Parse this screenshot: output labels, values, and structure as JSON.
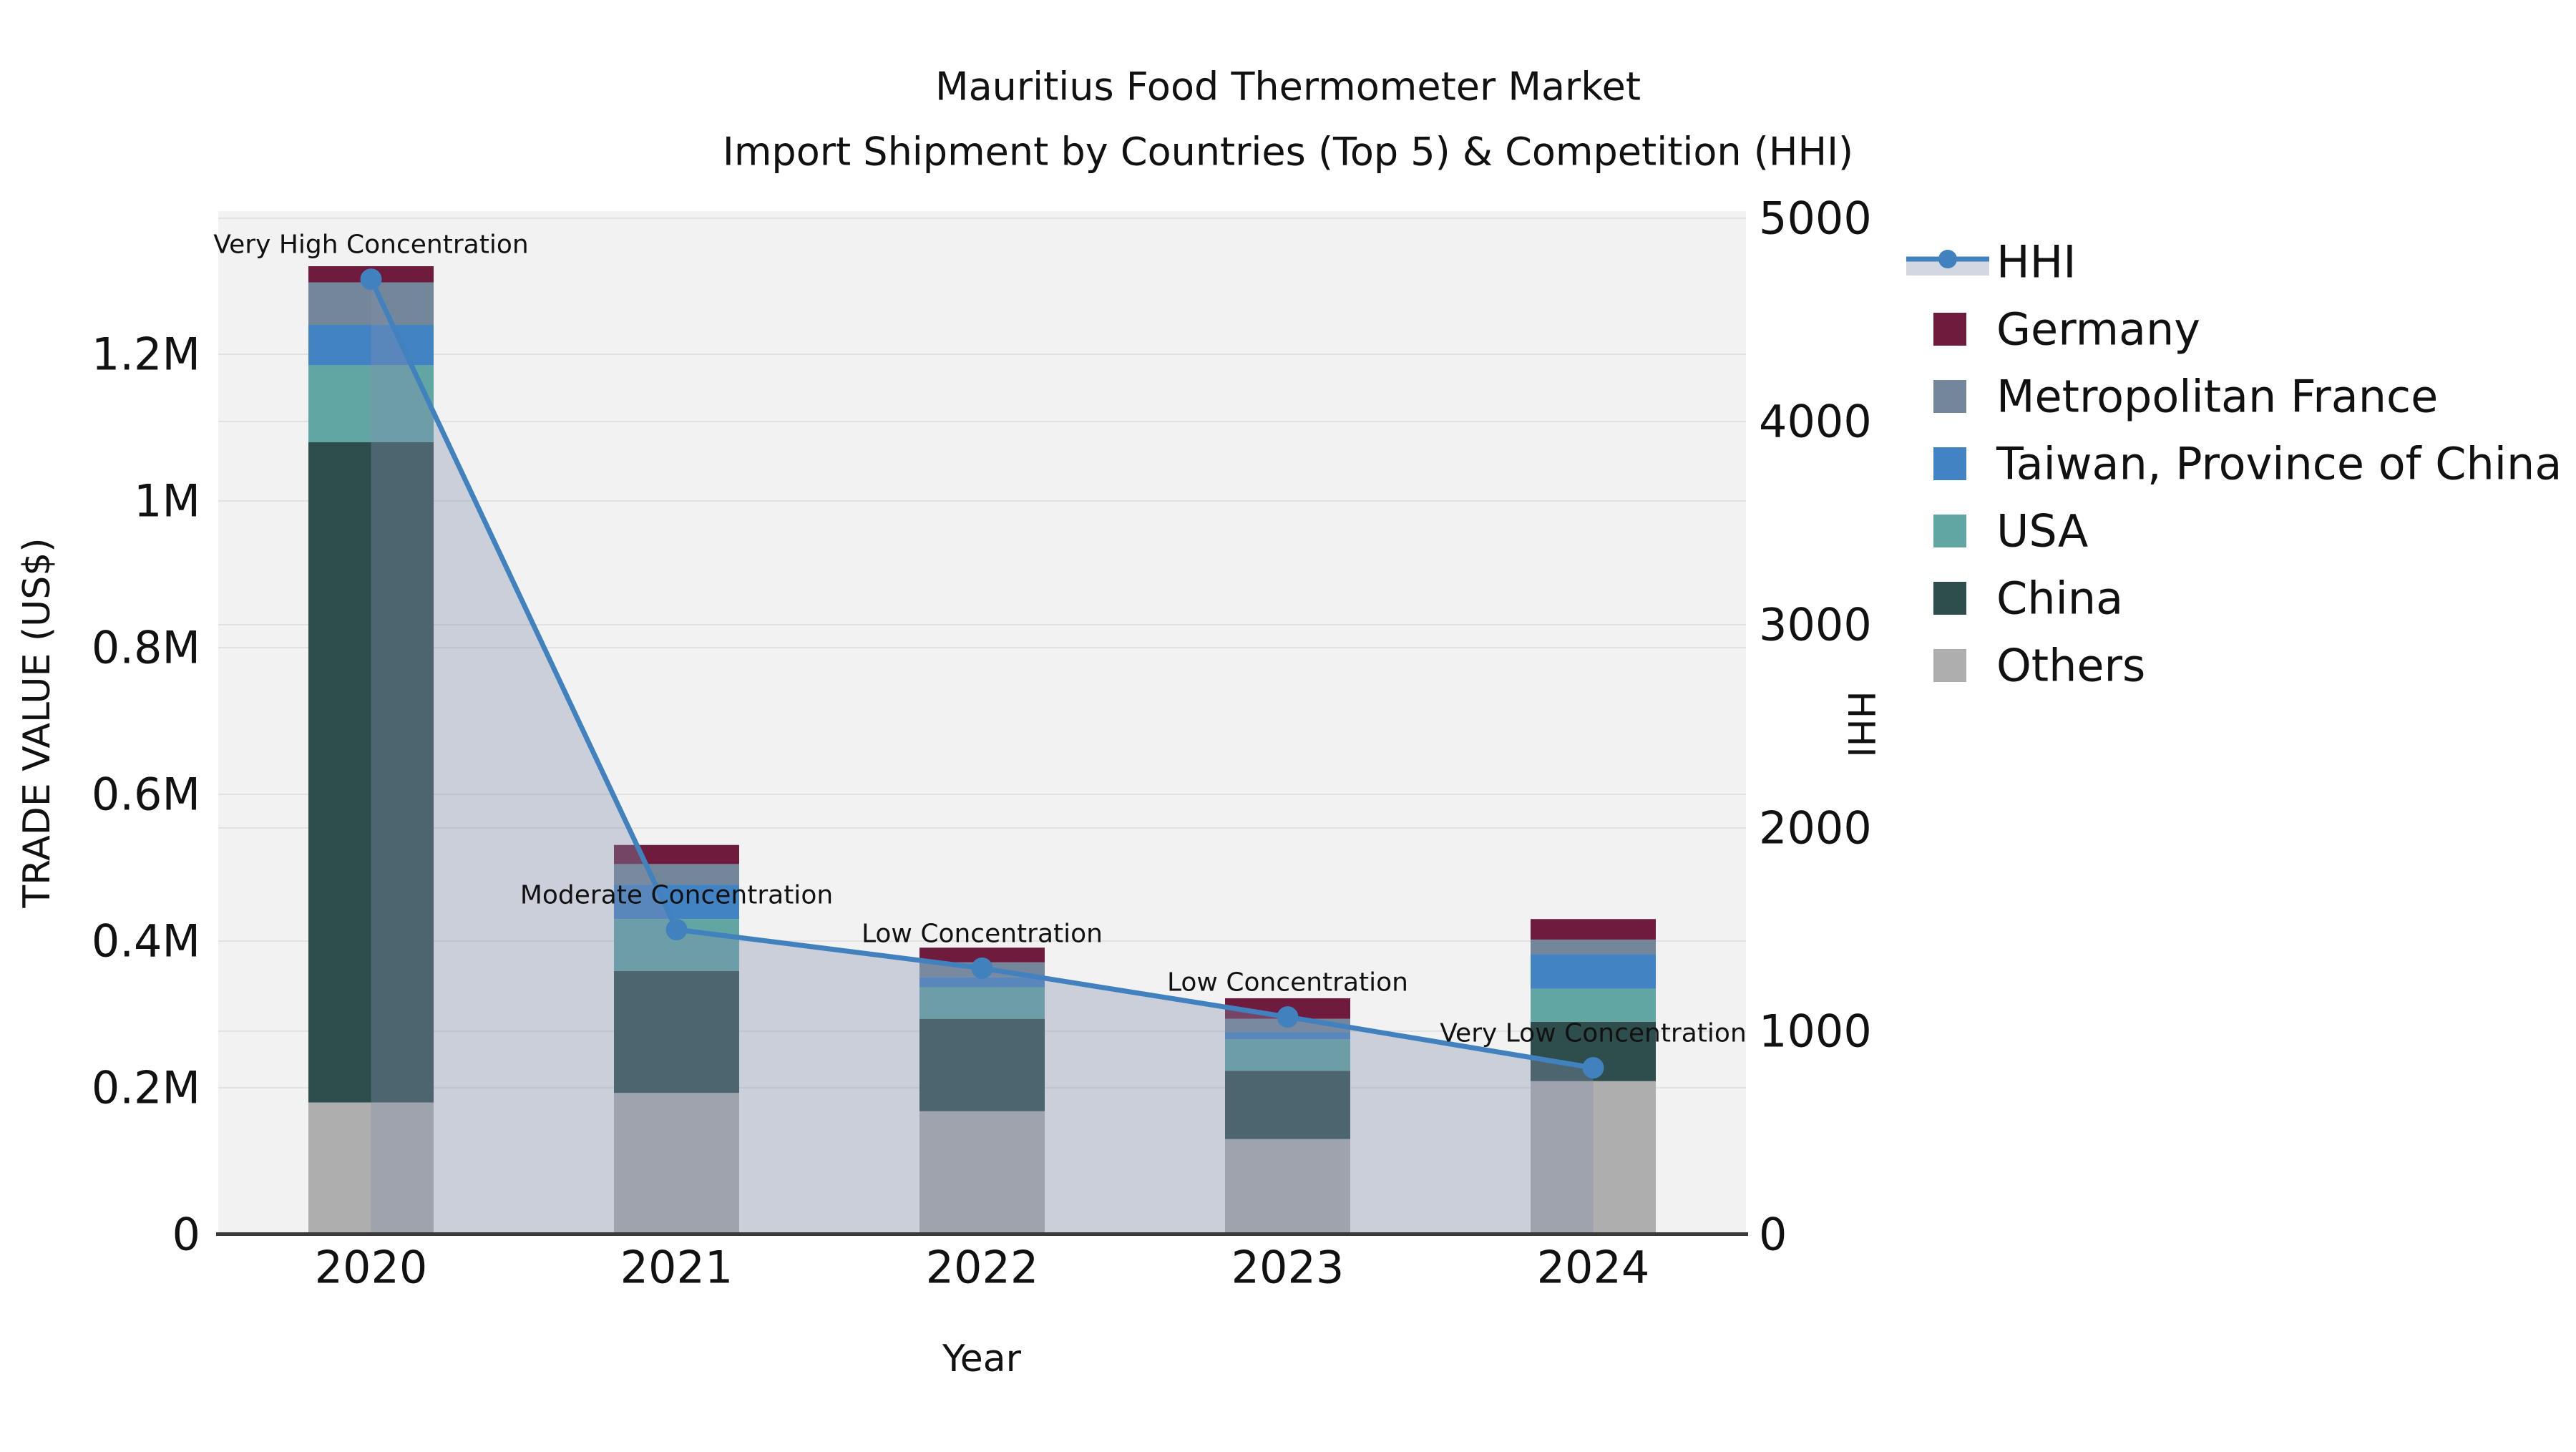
{
  "title": {
    "line1": "Mauritius Food Thermometer Market",
    "line2": "Import Shipment by Countries (Top 5) & Competition (HHI)"
  },
  "axes": {
    "x_label": "Year",
    "y_left_label": "TRADE VALUE (US$)",
    "y_right_label": "HHI",
    "y_left_ticks": [
      {
        "label": "0",
        "value": 0
      },
      {
        "label": "0.2M",
        "value": 200000
      },
      {
        "label": "0.4M",
        "value": 400000
      },
      {
        "label": "0.6M",
        "value": 600000
      },
      {
        "label": "0.8M",
        "value": 800000
      },
      {
        "label": "1M",
        "value": 1000000
      },
      {
        "label": "1.2M",
        "value": 1200000
      }
    ],
    "y_right_ticks": [
      {
        "label": "0",
        "value": 0
      },
      {
        "label": "1000",
        "value": 1000
      },
      {
        "label": "2000",
        "value": 2000
      },
      {
        "label": "3000",
        "value": 3000
      },
      {
        "label": "4000",
        "value": 4000
      },
      {
        "label": "5000",
        "value": 5000
      }
    ]
  },
  "colors": {
    "plot_bg": "#f2f2f2",
    "gridline": "#e2e2e2",
    "axis_spine": "#3a3a3a",
    "hhi_line": "#4182be",
    "hhi_band": "rgba(131,145,173,0.36)",
    "germany": "#6e1b3e",
    "metropolitan_france": "#748699",
    "taiwan": "#4283c4",
    "usa": "#62a6a4",
    "china": "#2e4e4d",
    "others": "#aeaeae"
  },
  "legend": {
    "items": [
      {
        "key": "hhi",
        "label": "HHI",
        "type": "line-band"
      },
      {
        "key": "germany",
        "label": "Germany",
        "type": "square"
      },
      {
        "key": "metropolitan_france",
        "label": "Metropolitan France",
        "type": "square"
      },
      {
        "key": "taiwan",
        "label": "Taiwan, Province of China",
        "type": "square"
      },
      {
        "key": "usa",
        "label": "USA",
        "type": "square"
      },
      {
        "key": "china",
        "label": "China",
        "type": "square"
      },
      {
        "key": "others",
        "label": "Others",
        "type": "square"
      }
    ]
  },
  "chart_data": {
    "type": "bar",
    "subtype": "stacked-bars-with-line",
    "title": "Mauritius Food Thermometer Market — Import Shipment by Countries (Top 5) & Competition (HHI)",
    "xlabel": "Year",
    "ylabel_left": "TRADE VALUE (US$)",
    "ylabel_right": "HHI",
    "ylim_left": [
      0,
      1395000
    ],
    "ylim_right": [
      0,
      5035
    ],
    "grid": true,
    "legend_position": "right-outside",
    "categories": [
      "2020",
      "2021",
      "2022",
      "2023",
      "2024"
    ],
    "series": [
      {
        "name": "Others",
        "color_key": "others",
        "values": [
          180000,
          193000,
          168000,
          130000,
          209000
        ]
      },
      {
        "name": "China",
        "color_key": "china",
        "values": [
          900000,
          166000,
          126000,
          93000,
          81000
        ]
      },
      {
        "name": "USA",
        "color_key": "usa",
        "values": [
          105000,
          71000,
          43000,
          43000,
          45000
        ]
      },
      {
        "name": "Taiwan, Province of China",
        "color_key": "taiwan",
        "values": [
          55000,
          47000,
          14000,
          10000,
          47000
        ]
      },
      {
        "name": "Metropolitan France",
        "color_key": "metropolitan_france",
        "values": [
          58000,
          28000,
          20000,
          18000,
          20000
        ]
      },
      {
        "name": "Germany",
        "color_key": "germany",
        "values": [
          22000,
          26000,
          20000,
          28000,
          28000
        ]
      }
    ],
    "line_series": {
      "name": "HHI",
      "axis": "right",
      "values": [
        4700,
        1500,
        1310,
        1070,
        820
      ],
      "area_fill_to_zero": true
    },
    "annotations": [
      {
        "x": "2020",
        "text": "Very High Concentration"
      },
      {
        "x": "2021",
        "text": "Moderate Concentration"
      },
      {
        "x": "2022",
        "text": "Low Concentration"
      },
      {
        "x": "2023",
        "text": "Low Concentration"
      },
      {
        "x": "2024",
        "text": "Very Low Concentration"
      }
    ]
  }
}
